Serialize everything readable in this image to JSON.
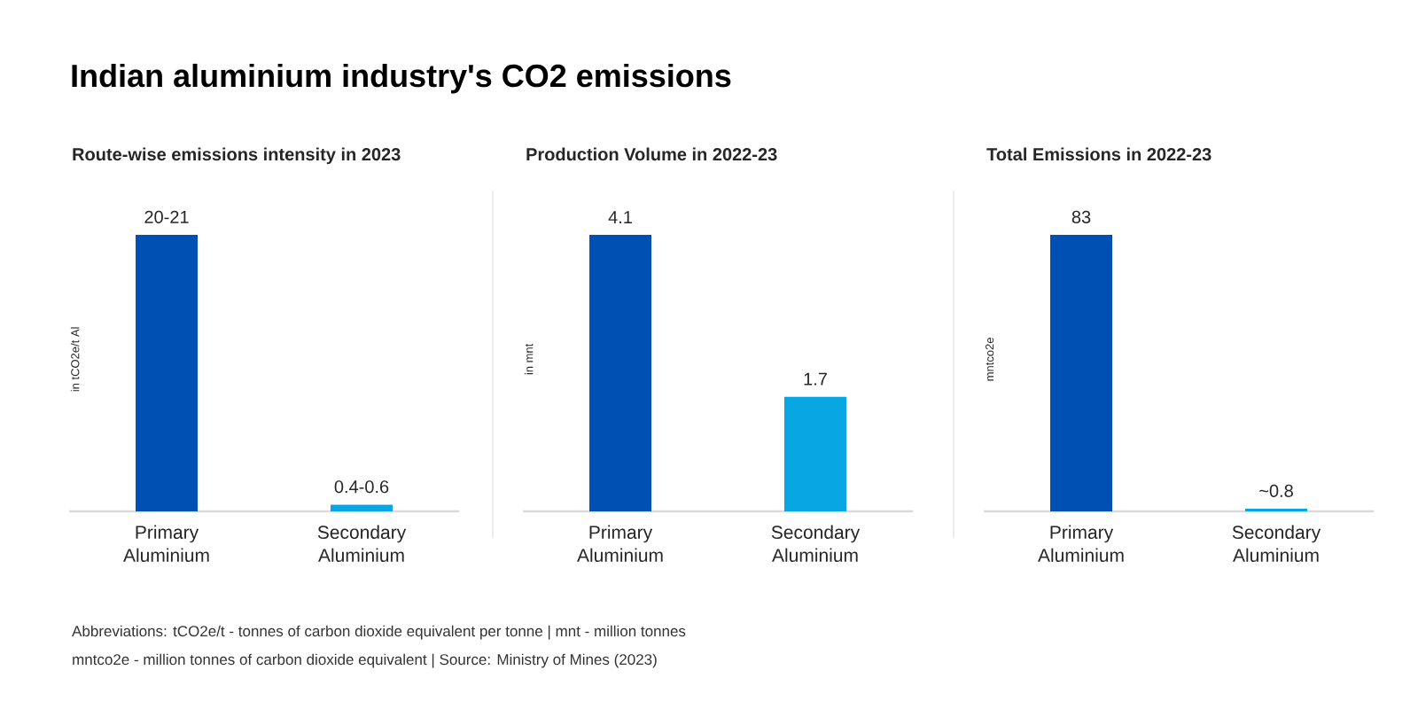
{
  "chart_data": [
    {
      "type": "other",
      "title": "Indian aluminium industry's CO2 emissions",
      "annotations": [
        "Abbreviations: tCO2e/t - tonnes of carbon dioxide equivalent per tonne | mnt - million tonnes",
        "mntco2e - million tonnes of carbon dioxide equivalent | Source: Ministry of Mines (2023)"
      ]
    },
    {
      "type": "bar",
      "title": "Route-wise emissions intensity in 2023",
      "ylabel": "in tCO2e/t Al",
      "categories": [
        "Primary Aluminium",
        "Secondary Aluminium"
      ],
      "values": [
        20.5,
        0.5
      ],
      "value_labels": [
        "20-21",
        "0.4-0.6"
      ],
      "colors": [
        "#0050b4",
        "#08a6e3"
      ]
    },
    {
      "type": "bar",
      "title": "Production Volume in 2022-23",
      "ylabel": "in mnt",
      "categories": [
        "Primary Aluminium",
        "Secondary Aluminium"
      ],
      "values": [
        4.1,
        1.7
      ],
      "data_labels": true,
      "colors": [
        "#0050b4",
        "#08a6e3"
      ]
    },
    {
      "type": "bar",
      "title": "Total Emissions in 2022-23",
      "ylabel": "mntco2e",
      "categories": [
        "Primary Aluminium",
        "Secondary Aluminium"
      ],
      "values": [
        83,
        0.8
      ],
      "value_labels": [
        "83",
        "~0.8"
      ],
      "colors": [
        "#0050b4",
        "#08a6e3"
      ]
    }
  ]
}
